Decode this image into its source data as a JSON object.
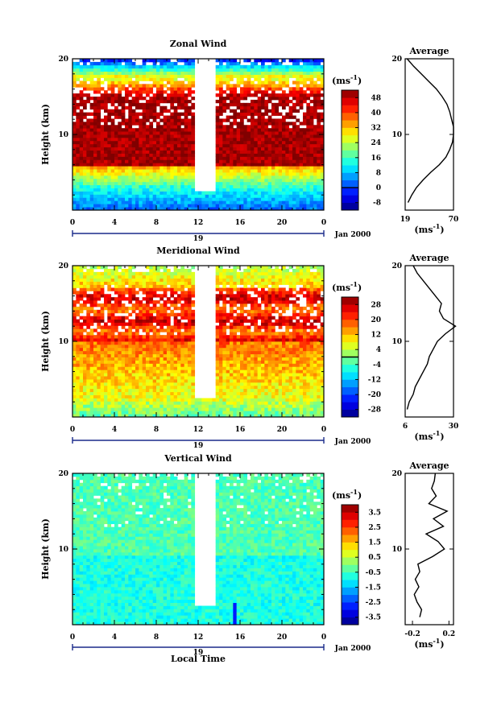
{
  "chart_data": [
    {
      "type": "heatmap",
      "title": "Zonal Wind",
      "ylabel": "Height (km)",
      "x_ticks": [
        "0",
        "4",
        "8",
        "12",
        "16",
        "20",
        "0"
      ],
      "y_ticks": [
        "10",
        "20"
      ],
      "date_day": "19",
      "date_month": "Jan 2000",
      "unit_label": "(ms",
      "unit_exp": "-1",
      "unit_close": ")",
      "colorbar_ticks": [
        "48",
        "40",
        "32",
        "24",
        "16",
        "8",
        "0",
        "-8"
      ],
      "colorbar_range": [
        -12,
        52
      ],
      "zero_line": 0,
      "profile": {
        "title": "Average",
        "x_ticks": [
          "19",
          "70"
        ],
        "y_ticks": [
          "10",
          "20"
        ],
        "xlabel": "(ms",
        "xlabel_exp": "-1",
        "xlabel_close": ")",
        "xlim": [
          19,
          70
        ],
        "heights": [
          1,
          2,
          3,
          4,
          5,
          6,
          7,
          8,
          9,
          10,
          11,
          12,
          13,
          14,
          15,
          16,
          17,
          18,
          19,
          20
        ],
        "values": [
          22,
          26,
          31,
          38,
          46,
          55,
          62,
          66,
          69,
          70,
          70,
          68,
          66,
          63,
          58,
          52,
          44,
          36,
          28,
          21
        ]
      }
    },
    {
      "type": "heatmap",
      "title": "Meridional Wind",
      "ylabel": "Height (km)",
      "x_ticks": [
        "0",
        "4",
        "8",
        "12",
        "16",
        "20",
        "0"
      ],
      "y_ticks": [
        "10",
        "20"
      ],
      "date_day": "19",
      "date_month": "Jan 2000",
      "unit_label": "(ms",
      "unit_exp": "-1",
      "unit_close": ")",
      "colorbar_ticks": [
        "28",
        "20",
        "12",
        "4",
        "-4",
        "-12",
        "-20",
        "-28"
      ],
      "colorbar_range": [
        -32,
        32
      ],
      "zero_line": 0,
      "profile": {
        "title": "Average",
        "x_ticks": [
          "6",
          "30"
        ],
        "y_ticks": [
          "10",
          "20"
        ],
        "xlabel": "(ms",
        "xlabel_exp": "-1",
        "xlabel_close": ")",
        "xlim": [
          6,
          30
        ],
        "heights": [
          1,
          2,
          3,
          4,
          5,
          6,
          7,
          8,
          9,
          10,
          11,
          12,
          13,
          14,
          15,
          16,
          17,
          18,
          19,
          20
        ],
        "values": [
          7,
          8,
          10,
          11,
          13,
          15,
          17,
          18,
          20,
          22,
          26,
          31,
          25,
          23,
          24,
          21,
          18,
          15,
          12,
          10
        ]
      }
    },
    {
      "type": "heatmap",
      "title": "Vertical Wind",
      "ylabel": "Height (km)",
      "xlabel": "Local Time",
      "x_ticks": [
        "0",
        "4",
        "8",
        "12",
        "16",
        "20",
        "0"
      ],
      "y_ticks": [
        "10",
        "20"
      ],
      "date_day": "19",
      "date_month": "Jan 2000",
      "unit_label": "(ms",
      "unit_exp": "-1",
      "unit_close": ")",
      "colorbar_ticks": [
        "3.5",
        "2.5",
        "1.5",
        "0.5",
        "-0.5",
        "-1.5",
        "-2.5",
        "-3.5"
      ],
      "colorbar_range": [
        -4,
        4
      ],
      "zero_line": null,
      "profile": {
        "title": "Average",
        "x_ticks": [
          "-0.2",
          "0.2"
        ],
        "y_ticks": [
          "10",
          "20"
        ],
        "xlabel": "(ms",
        "xlabel_exp": "-1",
        "xlabel_close": ")",
        "xlim": [
          -0.28,
          0.25
        ],
        "heights": [
          1,
          2,
          3,
          4,
          5,
          6,
          7,
          8,
          9,
          10,
          11,
          12,
          13,
          14,
          15,
          16,
          17,
          18,
          19,
          20
        ],
        "values": [
          -0.12,
          -0.1,
          -0.15,
          -0.18,
          -0.13,
          -0.17,
          -0.12,
          -0.14,
          0.02,
          0.15,
          0.08,
          -0.05,
          0.14,
          0.03,
          0.18,
          -0.02,
          0.06,
          0.01,
          0.04,
          0.05
        ]
      }
    }
  ]
}
